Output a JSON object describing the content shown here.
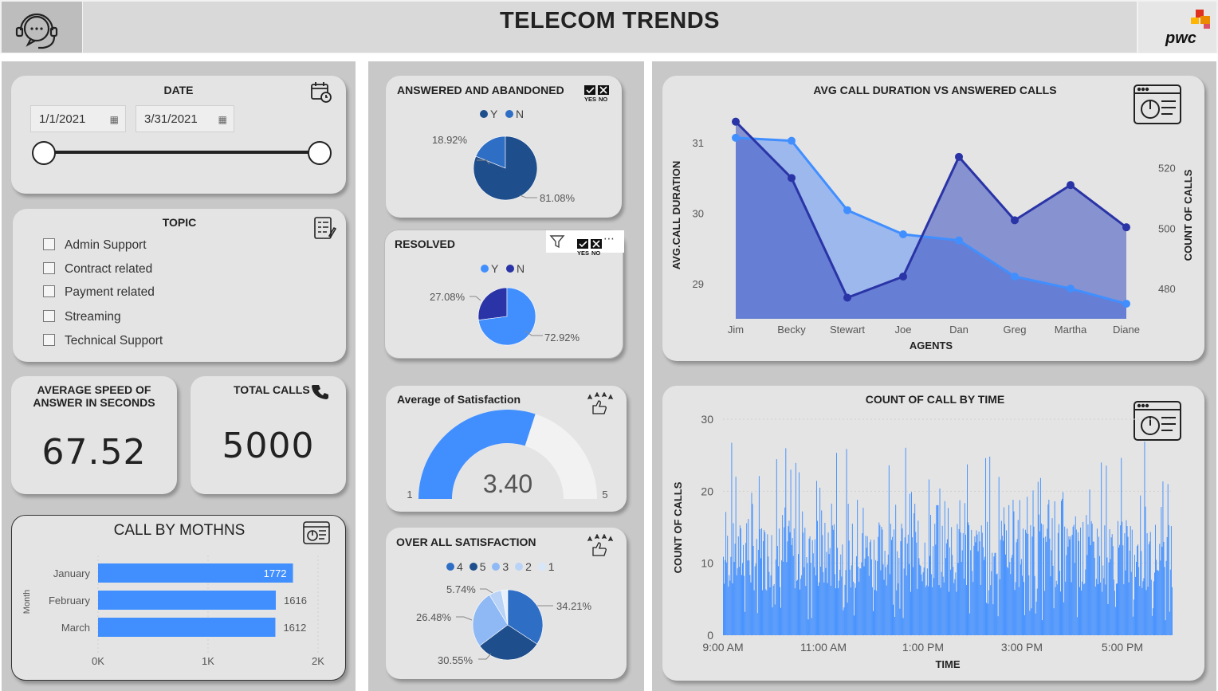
{
  "header": {
    "title": "TELECOM TRENDS",
    "brand": "pwc"
  },
  "date_slicer": {
    "title": "DATE",
    "start": "1/1/2021",
    "end": "3/31/2021"
  },
  "topic_slicer": {
    "title": "TOPIC",
    "items": [
      "Admin Support",
      "Contract related",
      "Payment related",
      "Streaming",
      "Technical Support"
    ]
  },
  "kpi_speed": {
    "title_line1": "AVERAGE SPEED OF",
    "title_line2": "ANSWER IN SECONDS",
    "value": "67.52"
  },
  "kpi_calls": {
    "title": "TOTAL CALLS",
    "value": "5000"
  },
  "answered": {
    "title": "ANSWERED AND ABANDONED",
    "legend": [
      "Y",
      "N"
    ],
    "labels": [
      "18.92%",
      "81.08%"
    ]
  },
  "resolved": {
    "title": "RESOLVED",
    "legend": [
      "Y",
      "N"
    ],
    "labels": [
      "27.08%",
      "72.92%"
    ]
  },
  "satisfaction_avg": {
    "title": "Average of Satisfaction",
    "value": "3.40",
    "min": "1",
    "max": "5"
  },
  "overall_sat": {
    "title": "OVER ALL SATISFACTION",
    "legend": [
      "4",
      "5",
      "3",
      "2",
      "1"
    ],
    "labels": [
      "5.74%",
      "34.21%",
      "26.48%",
      "30.55%"
    ]
  },
  "yesno_icon": {
    "yes": "YES",
    "no": "NO"
  },
  "colors": {
    "dark": "#1f4e8c",
    "mid": "#2f6ec5",
    "light": "#418fff",
    "navy": "#2a34a6",
    "pale": "#8fb9f5"
  },
  "icons": [
    "headset-icon",
    "calendar-clock-icon",
    "checklist-icon",
    "phone-icon",
    "dashboard-icon",
    "filter-icon",
    "rating-icon"
  ],
  "chart_data": [
    {
      "type": "bar",
      "title": "CALL BY MOTHNS",
      "ylabel": "Month",
      "categories": [
        "January",
        "February",
        "March"
      ],
      "values": [
        1772,
        1616,
        1612
      ],
      "value_labels": [
        "1772",
        "1616",
        "1612"
      ],
      "xlim": [
        0,
        2000
      ],
      "xticks": [
        "0K",
        "1K",
        "2K"
      ]
    },
    {
      "type": "pie",
      "title": "ANSWERED AND ABANDONED",
      "categories": [
        "Y",
        "N"
      ],
      "values": [
        81.08,
        18.92
      ]
    },
    {
      "type": "pie",
      "title": "RESOLVED",
      "categories": [
        "Y",
        "N"
      ],
      "values": [
        72.92,
        27.08
      ]
    },
    {
      "type": "pie",
      "title": "OVER ALL SATISFACTION",
      "categories": [
        "4",
        "5",
        "3",
        "2",
        "1"
      ],
      "values": [
        34.21,
        30.55,
        26.48,
        5.74,
        3.02
      ]
    },
    {
      "type": "area",
      "title": "AVG CALL DURATION VS ANSWERED CALLS",
      "xlabel": "AGENTS",
      "ylabel": "AVG.CALL DURATION",
      "y2label": "COUNT OF CALLS",
      "categories": [
        "Jim",
        "Becky",
        "Stewart",
        "Joe",
        "Dan",
        "Greg",
        "Martha",
        "Diane"
      ],
      "series": [
        {
          "axis": "left",
          "values": [
            31.3,
            30.5,
            28.8,
            29.1,
            30.8,
            29.9,
            30.4,
            29.8
          ]
        },
        {
          "axis": "right",
          "values": [
            530,
            529,
            506,
            498,
            496,
            484,
            480,
            475
          ]
        }
      ],
      "ylim": [
        28.5,
        31.5
      ],
      "y2lim": [
        470,
        540
      ],
      "yticks": [
        29,
        30,
        31
      ],
      "y2ticks": [
        480,
        500,
        520
      ]
    },
    {
      "type": "bar",
      "title": "COUNT OF CALL BY TIME",
      "xlabel": "TIME",
      "ylabel": "COUNT OF CALLS",
      "ylim": [
        0,
        30
      ],
      "yticks": [
        0,
        10,
        20,
        30
      ],
      "xticks": [
        "9:00 AM",
        "11:00 AM",
        "1:00 PM",
        "3:00 PM",
        "5:00 PM"
      ],
      "x_range": [
        "9:00 AM",
        "5:59 PM"
      ],
      "bar_interval_minutes": 1,
      "values_summary": "dense series of ~540 per-minute counts mostly between 5 and 20, peaks near 27"
    }
  ]
}
